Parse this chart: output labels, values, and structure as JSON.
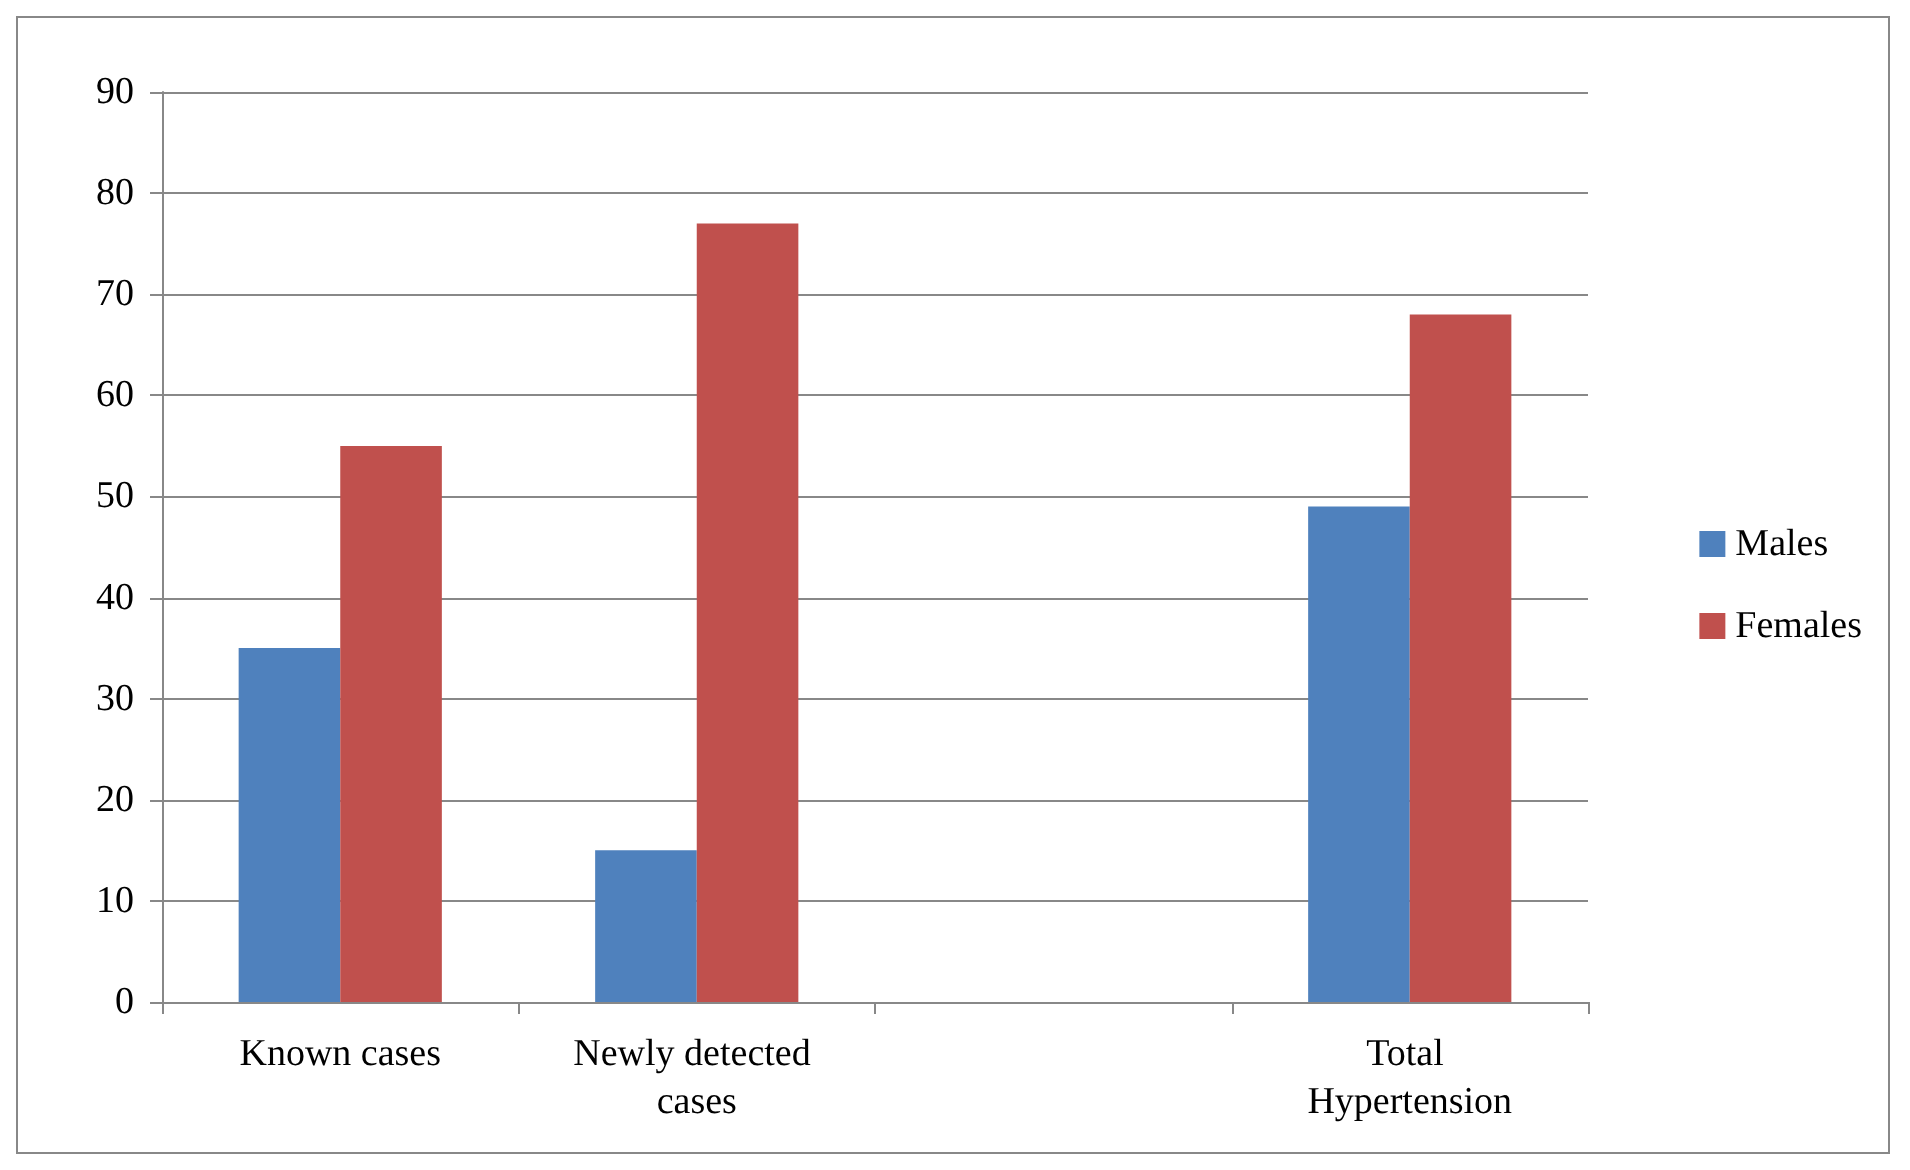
{
  "chart_data": {
    "type": "bar",
    "categories": [
      "Known cases",
      "Newly detected cases",
      null,
      "Total Hypertension"
    ],
    "series": [
      {
        "name": "Males",
        "color": "#4f81bd",
        "values": [
          35,
          15,
          null,
          49
        ]
      },
      {
        "name": "Females",
        "color": "#c0504d",
        "values": [
          55,
          77,
          null,
          68
        ]
      }
    ],
    "ylim": [
      0,
      90
    ],
    "yticks": [
      0,
      10,
      20,
      30,
      40,
      50,
      60,
      70,
      80,
      90
    ],
    "grid": "y",
    "legend": "right"
  }
}
